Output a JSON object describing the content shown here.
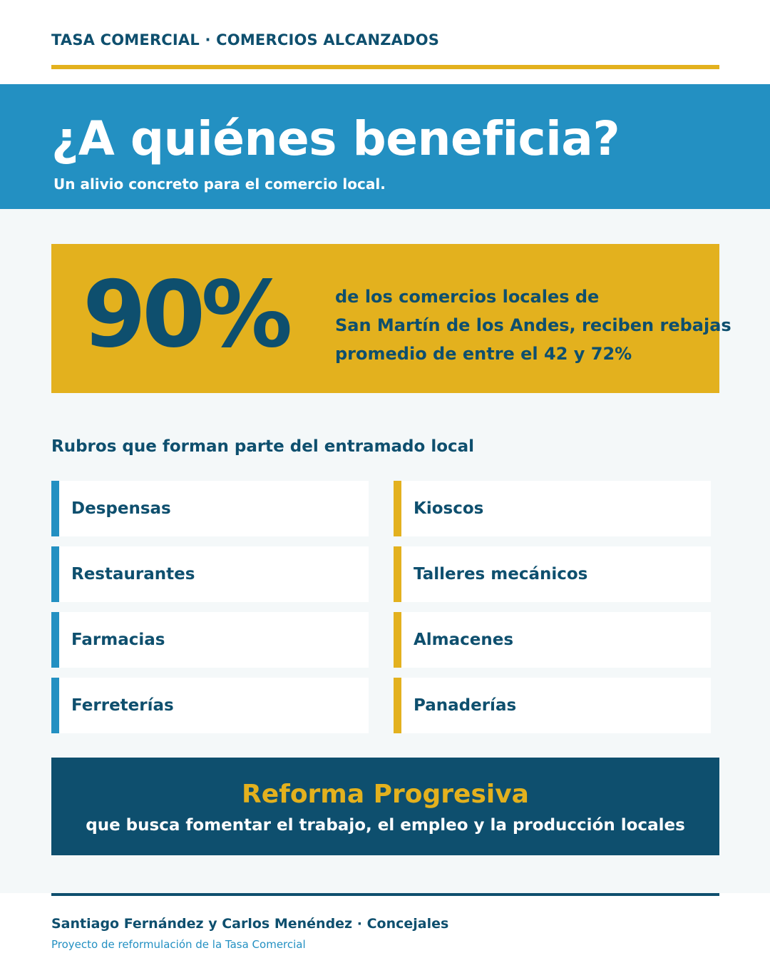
{
  "header": {
    "eyebrow": "TASA COMERCIAL · COMERCIOS ALCANZADOS"
  },
  "hero": {
    "title": "¿A quiénes beneficia?",
    "subtitle": "Un alivio concreto para el comercio local."
  },
  "stat": {
    "value": "90%",
    "lines": [
      "de los comercios locales de",
      "San Martín de los Andes, reciben rebajas",
      "promedio de entre el 42 y 72%"
    ]
  },
  "rubros": {
    "title": "Rubros que forman parte del entramado local",
    "left": [
      "Despensas",
      "Restaurantes",
      "Farmacias",
      "Ferreterías"
    ],
    "right": [
      "Kioscos",
      "Talleres mecánicos",
      "Almacenes",
      "Panaderías"
    ]
  },
  "cta": {
    "title": "Reforma Progresiva",
    "subtitle": "que busca fomentar el trabajo, el empleo y la producción locales"
  },
  "footer": {
    "names": "Santiago Fernández y Carlos Menéndez · Concejales",
    "note": "Proyecto de reformulación de la Tasa Comercial"
  },
  "colors": {
    "navy": "#0e4f6e",
    "blue": "#2390c2",
    "gold": "#e3b11e",
    "background": "#f4f8f9"
  }
}
